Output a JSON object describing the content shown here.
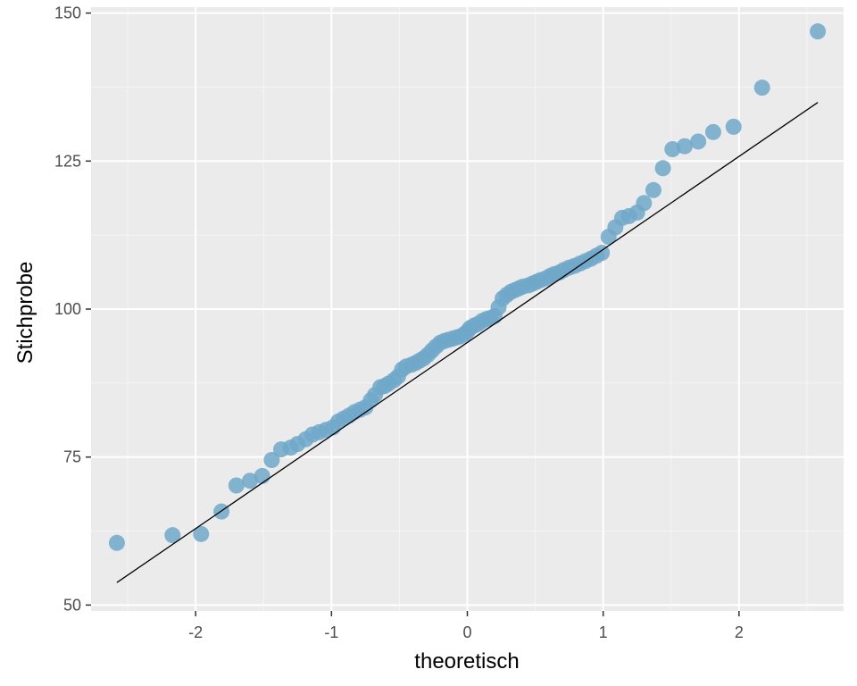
{
  "chart_data": {
    "type": "scatter",
    "title": "",
    "xlabel": "theoretisch",
    "ylabel": "Stichprobe",
    "xlim": [
      -2.77,
      2.77
    ],
    "ylim": [
      49.0,
      151.0
    ],
    "x_ticks": [
      -2,
      -1,
      0,
      1,
      2
    ],
    "x_tick_labels": [
      "-2",
      "-1",
      "0",
      "1",
      "2"
    ],
    "y_ticks": [
      50,
      75,
      100,
      125,
      150
    ],
    "y_tick_labels": [
      "50",
      "75",
      "100",
      "125",
      "150"
    ],
    "grid": true,
    "legend": "none",
    "point_color": "#6fa8c9",
    "line_color": "#000000",
    "background_color": "#ebebeb",
    "reference_line": {
      "x": [
        -2.58,
        2.58
      ],
      "y": [
        53.8,
        134.9
      ]
    },
    "points": {
      "x": [
        -2.58,
        -2.17,
        -1.96,
        -1.81,
        -1.7,
        -1.6,
        -1.51,
        -1.44,
        -1.37,
        -1.3,
        -1.25,
        -1.19,
        -1.14,
        -1.09,
        -1.04,
        -0.99,
        -0.95,
        -0.91,
        -0.87,
        -0.83,
        -0.79,
        -0.75,
        -0.71,
        -0.68,
        -0.64,
        -0.61,
        -0.58,
        -0.54,
        -0.51,
        -0.48,
        -0.45,
        -0.41,
        -0.38,
        -0.35,
        -0.32,
        -0.29,
        -0.26,
        -0.23,
        -0.2,
        -0.17,
        -0.14,
        -0.11,
        -0.08,
        -0.05,
        -0.02,
        0.0,
        0.02,
        0.05,
        0.08,
        0.11,
        0.14,
        0.17,
        0.2,
        0.23,
        0.26,
        0.29,
        0.32,
        0.35,
        0.38,
        0.41,
        0.45,
        0.48,
        0.51,
        0.54,
        0.58,
        0.61,
        0.64,
        0.68,
        0.71,
        0.75,
        0.79,
        0.83,
        0.87,
        0.91,
        0.95,
        0.99,
        1.04,
        1.09,
        1.14,
        1.19,
        1.25,
        1.3,
        1.37,
        1.44,
        1.51,
        1.6,
        1.7,
        1.81,
        1.96,
        2.17,
        2.58
      ],
      "y": [
        60.5,
        61.8,
        62.0,
        65.8,
        70.2,
        71.0,
        71.8,
        74.5,
        76.3,
        76.6,
        77.2,
        78.0,
        78.8,
        79.2,
        79.6,
        80.0,
        81.0,
        81.5,
        82.0,
        82.6,
        83.0,
        83.4,
        84.6,
        85.5,
        86.8,
        87.0,
        87.4,
        88.0,
        88.6,
        89.8,
        90.3,
        90.6,
        90.9,
        91.3,
        91.7,
        92.3,
        93.0,
        93.7,
        94.3,
        94.6,
        94.8,
        95.0,
        95.2,
        95.4,
        95.8,
        96.2,
        96.8,
        97.2,
        97.5,
        98.0,
        98.3,
        98.5,
        98.8,
        100.3,
        101.8,
        102.4,
        102.9,
        103.2,
        103.5,
        103.8,
        104.0,
        104.3,
        104.6,
        104.9,
        105.2,
        105.6,
        105.9,
        106.2,
        106.6,
        107.0,
        107.3,
        107.7,
        108.1,
        108.5,
        109.0,
        109.5,
        112.2,
        113.8,
        115.4,
        115.7,
        116.3,
        117.9,
        120.1,
        123.8,
        127.0,
        127.5,
        128.3,
        129.9,
        130.8,
        137.4,
        146.9
      ]
    }
  }
}
